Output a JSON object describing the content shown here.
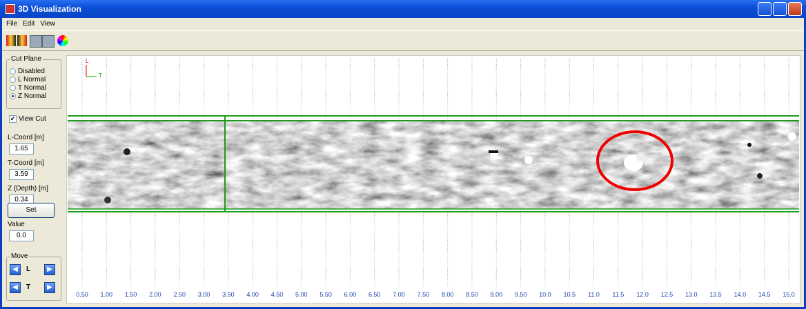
{
  "window": {
    "title": "3D Visualization"
  },
  "menu": [
    "File",
    "Edit",
    "View"
  ],
  "cut_plane": {
    "title": "Cut Plane",
    "options": [
      "Disabled",
      "L Normal",
      "T Normal",
      "Z Normal"
    ],
    "selected": 3
  },
  "view_cut": {
    "label": "View Cut",
    "checked": true
  },
  "fields": [
    {
      "label": "L-Coord [m]",
      "value": "1.65"
    },
    {
      "label": "T-Coord [m]",
      "value": "3.59"
    },
    {
      "label": "Z (Depth)  [m]",
      "value": "0.34"
    }
  ],
  "set_button": "Set",
  "value_field": {
    "label": "Value",
    "value": "0.0"
  },
  "move": {
    "title": "Move",
    "l": "L",
    "t": "T"
  },
  "axes_icon": {
    "l": "L",
    "t": "T"
  },
  "ruler": [
    "0.50",
    "1.00",
    "1.50",
    "2.00",
    "2.50",
    "3.00",
    "3.50",
    "4.00",
    "4.50",
    "5.00",
    "5.50",
    "6.00",
    "6.50",
    "7.00",
    "7.50",
    "8.00",
    "8.50",
    "9.00",
    "9.50",
    "10.0",
    "10.5",
    "11.0",
    "11.5",
    "12.0",
    "12.5",
    "13.0",
    "13.5",
    "14.0",
    "14.5",
    "15.0"
  ]
}
